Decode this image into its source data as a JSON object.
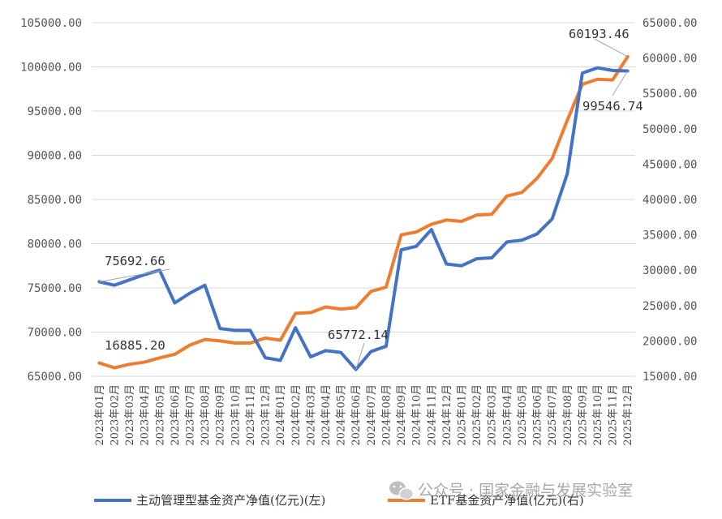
{
  "chart_data": {
    "type": "line",
    "categories": [
      "2023年01月",
      "2023年02月",
      "2023年03月",
      "2023年04月",
      "2023年05月",
      "2023年06月",
      "2023年07月",
      "2023年08月",
      "2023年09月",
      "2023年10月",
      "2023年11月",
      "2023年12月",
      "2024年01月",
      "2024年02月",
      "2024年03月",
      "2024年04月",
      "2024年05月",
      "2024年06月",
      "2024年07月",
      "2024年08月",
      "2024年09月",
      "2024年10月",
      "2024年11月",
      "2024年12月",
      "2025年01月",
      "2025年02月",
      "2025年03月",
      "2025年04月",
      "2025年05月",
      "2025年06月",
      "2025年07月",
      "2025年08月",
      "2025年09月",
      "2025年10月",
      "2025年11月",
      "2025年12月"
    ],
    "series": [
      {
        "name": "主动管理型基金资产净值(亿元)(左)",
        "axis": "left",
        "color": "#4472c4",
        "values": [
          75692.66,
          75300,
          75900,
          76500,
          77000,
          73300,
          74400,
          75300,
          70400,
          70200,
          70200,
          67100,
          66800,
          70500,
          67200,
          67900,
          67700,
          65772.14,
          67800,
          68400,
          79300,
          79700,
          81600,
          77700,
          77500,
          78300,
          78400,
          80200,
          80400,
          81100,
          82800,
          87900,
          99300,
          99900,
          99600,
          99546.74
        ]
      },
      {
        "name": "ETF基金资产净值(亿元)(右)",
        "axis": "right",
        "color": "#ed7d31",
        "values": [
          16885.2,
          16200,
          16700,
          17000,
          17600,
          18100,
          19400,
          20200,
          20000,
          19700,
          19700,
          20400,
          20100,
          23900,
          24000,
          24800,
          24500,
          24700,
          27000,
          27600,
          35000,
          35400,
          36500,
          37100,
          36900,
          37800,
          37900,
          40500,
          41000,
          43000,
          45800,
          51200,
          56300,
          57000,
          56900,
          60193.46
        ]
      }
    ],
    "left_axis": {
      "ylim": [
        65000,
        105000
      ],
      "ticks": [
        "105000.00",
        "100000.00",
        "95000.00",
        "90000.00",
        "85000.00",
        "80000.00",
        "75000.00",
        "70000.00",
        "65000.00"
      ]
    },
    "right_axis": {
      "ylim": [
        15000,
        65000
      ],
      "ticks": [
        "65000.00",
        "60000.00",
        "55000.00",
        "50000.00",
        "45000.00",
        "40000.00",
        "35000.00",
        "30000.00",
        "25000.00",
        "20000.00",
        "15000.00"
      ]
    },
    "annotations": [
      "75692.66",
      "16885.20",
      "65772.14",
      "60193.46",
      "99546.74"
    ],
    "grid": true,
    "legend_position": "bottom"
  },
  "watermark": "公众号 · 国家金融与发展实验室"
}
